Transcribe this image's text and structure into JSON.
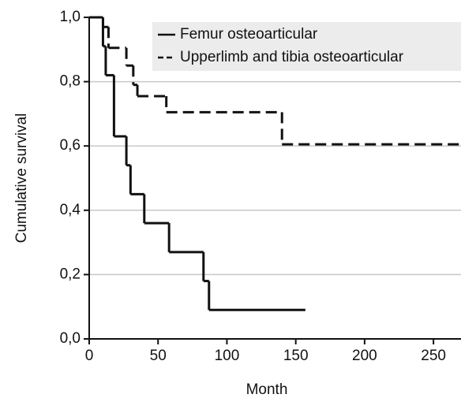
{
  "chart_data": {
    "type": "step",
    "xlabel": "Month",
    "ylabel": "Cumulative survival",
    "xlim": [
      0,
      270
    ],
    "ylim": [
      0,
      1
    ],
    "xticks": [
      0,
      50,
      100,
      150,
      200,
      250
    ],
    "yticks": [
      {
        "value": 0,
        "label": "0,0"
      },
      {
        "value": 0.2,
        "label": "0,2"
      },
      {
        "value": 0.4,
        "label": "0,4"
      },
      {
        "value": 0.6,
        "label": "0,6"
      },
      {
        "value": 0.8,
        "label": "0,8"
      },
      {
        "value": 1,
        "label": "1,0"
      }
    ],
    "grid": true,
    "legend": "upper right",
    "series": [
      {
        "name": "Femur osteoarticular",
        "color": "#111111",
        "dash": false,
        "x": [
          0,
          10,
          12,
          18,
          27,
          30,
          40,
          58,
          83,
          87,
          157
        ],
        "values": [
          1,
          0.91,
          0.82,
          0.63,
          0.54,
          0.45,
          0.36,
          0.27,
          0.18,
          0.09,
          0.09
        ]
      },
      {
        "name": "Upperlimb and tibia osteoarticular",
        "color": "#111111",
        "dash": true,
        "x": [
          0,
          10,
          14,
          27,
          32,
          35,
          56,
          140,
          270
        ],
        "values": [
          1,
          0.97,
          0.905,
          0.85,
          0.79,
          0.755,
          0.705,
          0.605,
          0.605
        ]
      }
    ]
  }
}
